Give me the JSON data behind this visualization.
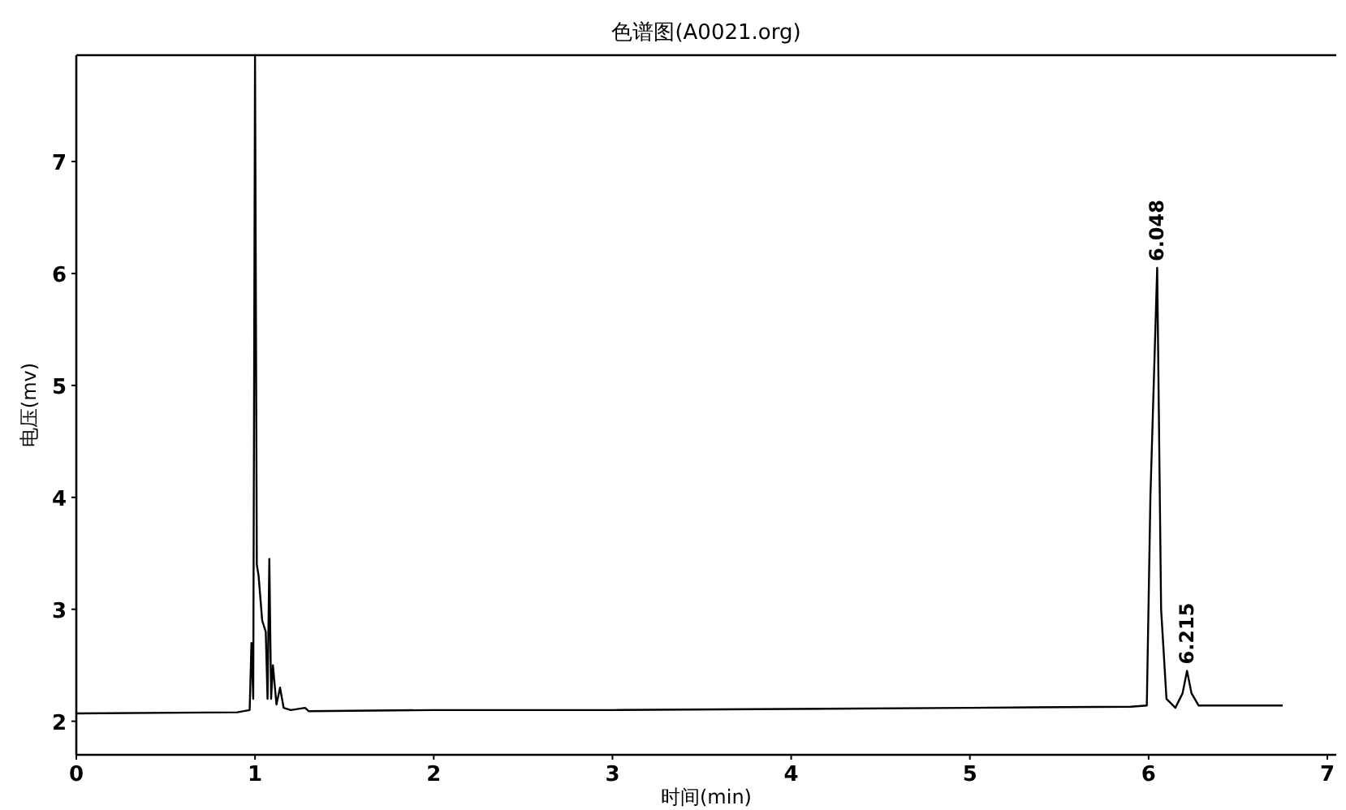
{
  "chart_data": {
    "type": "line",
    "title": "色谱图(A0021.org)",
    "xlabel": "时间(min)",
    "ylabel": "电压(mv)",
    "x": [
      0,
      0.9,
      0.97,
      0.98,
      0.99,
      1.0,
      1.01,
      1.02,
      1.04,
      1.06,
      1.07,
      1.08,
      1.09,
      1.1,
      1.12,
      1.14,
      1.16,
      1.2,
      1.28,
      1.3,
      2,
      3,
      4,
      5,
      5.9,
      5.99,
      6.01,
      6.048,
      6.07,
      6.1,
      6.15,
      6.19,
      6.215,
      6.24,
      6.28,
      6.75
    ],
    "series": [
      {
        "color": "#000000",
        "values": [
          2.07,
          2.08,
          2.1,
          2.7,
          2.2,
          7.95,
          3.4,
          3.3,
          2.9,
          2.8,
          2.2,
          3.45,
          2.2,
          2.5,
          2.15,
          2.3,
          2.12,
          2.1,
          2.12,
          2.09,
          2.1,
          2.1,
          2.11,
          2.12,
          2.13,
          2.14,
          4.0,
          6.05,
          3.0,
          2.2,
          2.12,
          2.25,
          2.45,
          2.25,
          2.14,
          2.14
        ]
      }
    ],
    "xlim": [
      0,
      7.05
    ],
    "ylim": [
      1.7,
      7.95
    ],
    "xticks": [
      0,
      1,
      2,
      3,
      4,
      5,
      6,
      7
    ],
    "yticks": [
      2,
      3,
      4,
      5,
      6,
      7
    ],
    "annotations": [
      {
        "text": "6.048",
        "x": 6.048,
        "y": 6.05
      },
      {
        "text": "6.215",
        "x": 6.215,
        "y": 2.45
      }
    ],
    "marker": "none",
    "line_style": "solid"
  }
}
